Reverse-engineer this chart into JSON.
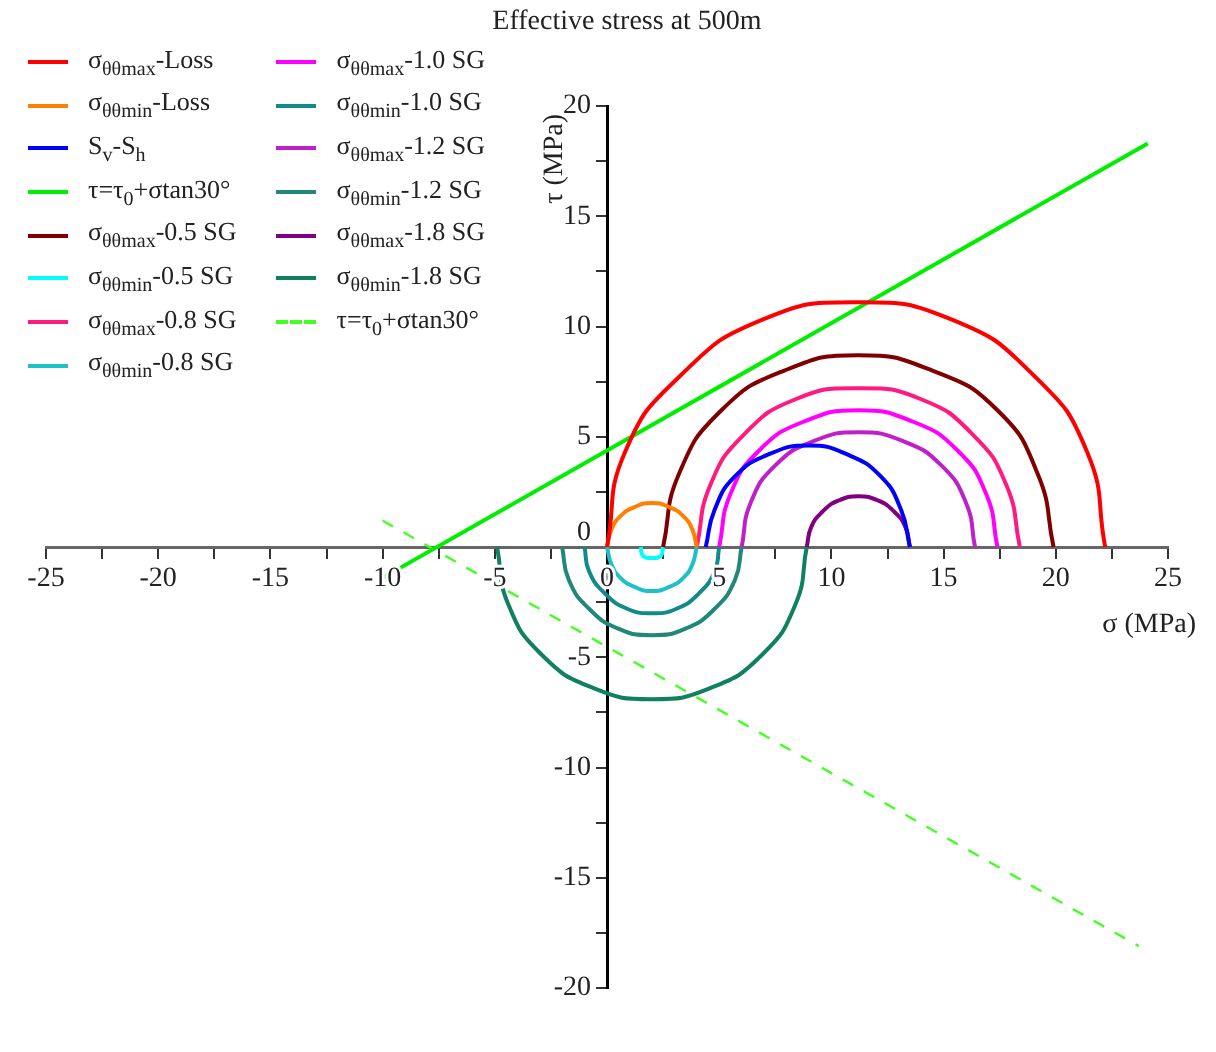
{
  "chart_data": {
    "type": "line",
    "title": "Effective stress at 500m",
    "xlabel": "σ (MPa)",
    "ylabel": "τ (MPa)",
    "grid": false,
    "legend": "top left",
    "marker": "none",
    "xlim": [
      -25,
      25
    ],
    "ylim": [
      -20,
      20
    ],
    "xticks": [
      -25,
      {
        "value": -22.5,
        "label": null
      },
      -20,
      {
        "value": -17.5,
        "label": null
      },
      -15,
      {
        "value": -12.5,
        "label": null
      },
      -10,
      {
        "value": -7.5,
        "label": null
      },
      -5,
      {
        "value": -2.5,
        "label": null
      },
      0,
      {
        "value": 2.5,
        "label": null
      },
      5,
      {
        "value": 7.5,
        "label": null
      },
      10,
      {
        "value": 12.5,
        "label": null
      },
      15,
      {
        "value": 17.5,
        "label": null
      },
      20,
      {
        "value": 22.5,
        "label": null
      },
      25
    ],
    "yticks": [
      -20,
      {
        "value": -17.5,
        "label": null
      },
      -15,
      {
        "value": -12.5,
        "label": null
      },
      -10,
      {
        "value": -7.5,
        "label": null
      },
      -5,
      {
        "value": -2.5,
        "label": null
      },
      0,
      {
        "value": 2.5,
        "label": null
      },
      5,
      {
        "value": 7.5,
        "label": null
      },
      10,
      {
        "value": 12.5,
        "label": null
      },
      15,
      {
        "value": 17.5,
        "label": null
      },
      20
    ],
    "series": [
      {
        "name": "σ$_{θθmax}$-Loss",
        "color": "#ff0000",
        "x": [
          0,
          0.8,
          3.3,
          6.9,
          11.1,
          15.4,
          19.0,
          21.4,
          22.2
        ],
        "values": [
          0,
          4.3,
          7.8,
          10.3,
          11.1,
          10.3,
          7.8,
          4.3,
          0
        ]
      },
      {
        "name": "σ$_{θθmin}$-Loss",
        "color": "#ff8000",
        "x": [
          0,
          0.2,
          0.6,
          1.2,
          2,
          2.8,
          3.4,
          3.8,
          4
        ],
        "values": [
          0,
          0.8,
          1.4,
          1.8,
          2,
          1.8,
          1.4,
          0.8,
          0
        ]
      },
      {
        "name": "S$_{v}$-S$_{h}$",
        "color": "#0000ff",
        "x": [
          4.4,
          4.8,
          5.7,
          7.2,
          9.0,
          10.7,
          12.2,
          13.1,
          13.5
        ],
        "values": [
          0,
          1.7,
          3.2,
          4.2,
          4.6,
          4.2,
          3.2,
          1.7,
          0
        ]
      },
      {
        "name": "τ=τ$_{0}$+σtan30°",
        "color": "#00ee00",
        "x": [
          -10,
          24.1
        ],
        "values": [
          -1.4,
          18.3
        ]
      },
      {
        "name": "σ$_{θθmax}$-0.5 SG",
        "color": "#800000",
        "x": [
          2.5,
          3.2,
          5.1,
          7.9,
          11.2,
          14.5,
          17.4,
          19.2,
          19.9
        ],
        "values": [
          0,
          3.3,
          6.2,
          8.0,
          8.7,
          8.0,
          6.2,
          3.3,
          0
        ]
      },
      {
        "name": "σ$_{θθmin}$-0.5 SG",
        "color": "#00ffff",
        "x": [
          1.5,
          1.6,
          2,
          2.4,
          2.5
        ],
        "values": [
          0,
          -0.4,
          -0.5,
          -0.4,
          0
        ]
      },
      {
        "name": "σ$_{θθmax}$-0.8 SG",
        "color": "#ff1a80",
        "x": [
          4.0,
          4.6,
          6.1,
          8.4,
          11.2,
          14.0,
          16.3,
          17.8,
          18.4
        ],
        "values": [
          0,
          2.8,
          5.1,
          6.7,
          7.2,
          6.7,
          5.1,
          2.8,
          0
        ]
      },
      {
        "name": "σ$_{θθmin}$-0.8 SG",
        "color": "#20c0c8",
        "x": [
          0,
          0.2,
          0.6,
          1.2,
          2,
          2.8,
          3.4,
          3.8,
          4
        ],
        "values": [
          0,
          -0.8,
          -1.4,
          -1.8,
          -2,
          -1.8,
          -1.4,
          -0.8,
          0
        ]
      },
      {
        "name": "σ$_{θθmax}$-1.0 SG",
        "color": "#ff00ff",
        "x": [
          5.0,
          5.5,
          6.8,
          8.8,
          11.2,
          13.6,
          15.6,
          16.9,
          17.4
        ],
        "values": [
          0,
          2.4,
          4.4,
          5.7,
          6.2,
          5.7,
          4.4,
          2.4,
          0
        ]
      },
      {
        "name": "σ$_{θθmin}$-1.0 SG",
        "color": "#108a8a",
        "x": [
          -1,
          -0.8,
          -0.1,
          0.9,
          2,
          3.1,
          4.1,
          4.8,
          5
        ],
        "values": [
          0,
          -1.1,
          -2.1,
          -2.8,
          -3,
          -2.8,
          -2.1,
          -1.1,
          0
        ]
      },
      {
        "name": "σ$_{θθmax}$-1.2 SG",
        "color": "#c020c8",
        "x": [
          6.0,
          6.4,
          7.5,
          9.2,
          11.2,
          13.2,
          14.9,
          16.0,
          16.4
        ],
        "values": [
          0,
          2.0,
          3.7,
          4.8,
          5.2,
          4.8,
          3.7,
          2.0,
          0
        ]
      },
      {
        "name": "σ$_{θθmin}$-1.2 SG",
        "color": "#208878",
        "x": [
          -2,
          -1.7,
          -0.8,
          0.5,
          2,
          3.5,
          4.8,
          5.7,
          6
        ],
        "values": [
          0,
          -1.5,
          -2.8,
          -3.7,
          -4,
          -3.7,
          -2.8,
          -1.5,
          0
        ]
      },
      {
        "name": "σ$_{θθmax}$-1.8 SG",
        "color": "#800080",
        "x": [
          8.9,
          9.1,
          9.6,
          10.3,
          11.2,
          12.1,
          12.8,
          13.3,
          13.5
        ],
        "values": [
          0,
          0.9,
          1.6,
          2.1,
          2.3,
          2.1,
          1.6,
          0.9,
          0
        ]
      },
      {
        "name": "σ$_{θθmin}$-1.8 SG",
        "color": "#108060",
        "x": [
          -4.9,
          -4.4,
          -2.9,
          -0.6,
          2,
          4.6,
          6.9,
          8.4,
          8.9
        ],
        "values": [
          0,
          -2.6,
          -4.9,
          -6.4,
          -6.9,
          -6.4,
          -4.9,
          -2.6,
          0
        ]
      },
      {
        "name": "τ=τ$_{0}$+σtan30°",
        "color": "#44ff22",
        "line_style": "dashed",
        "x": [
          -10,
          23.7
        ],
        "values": [
          1.2,
          -18.1
        ]
      }
    ]
  }
}
